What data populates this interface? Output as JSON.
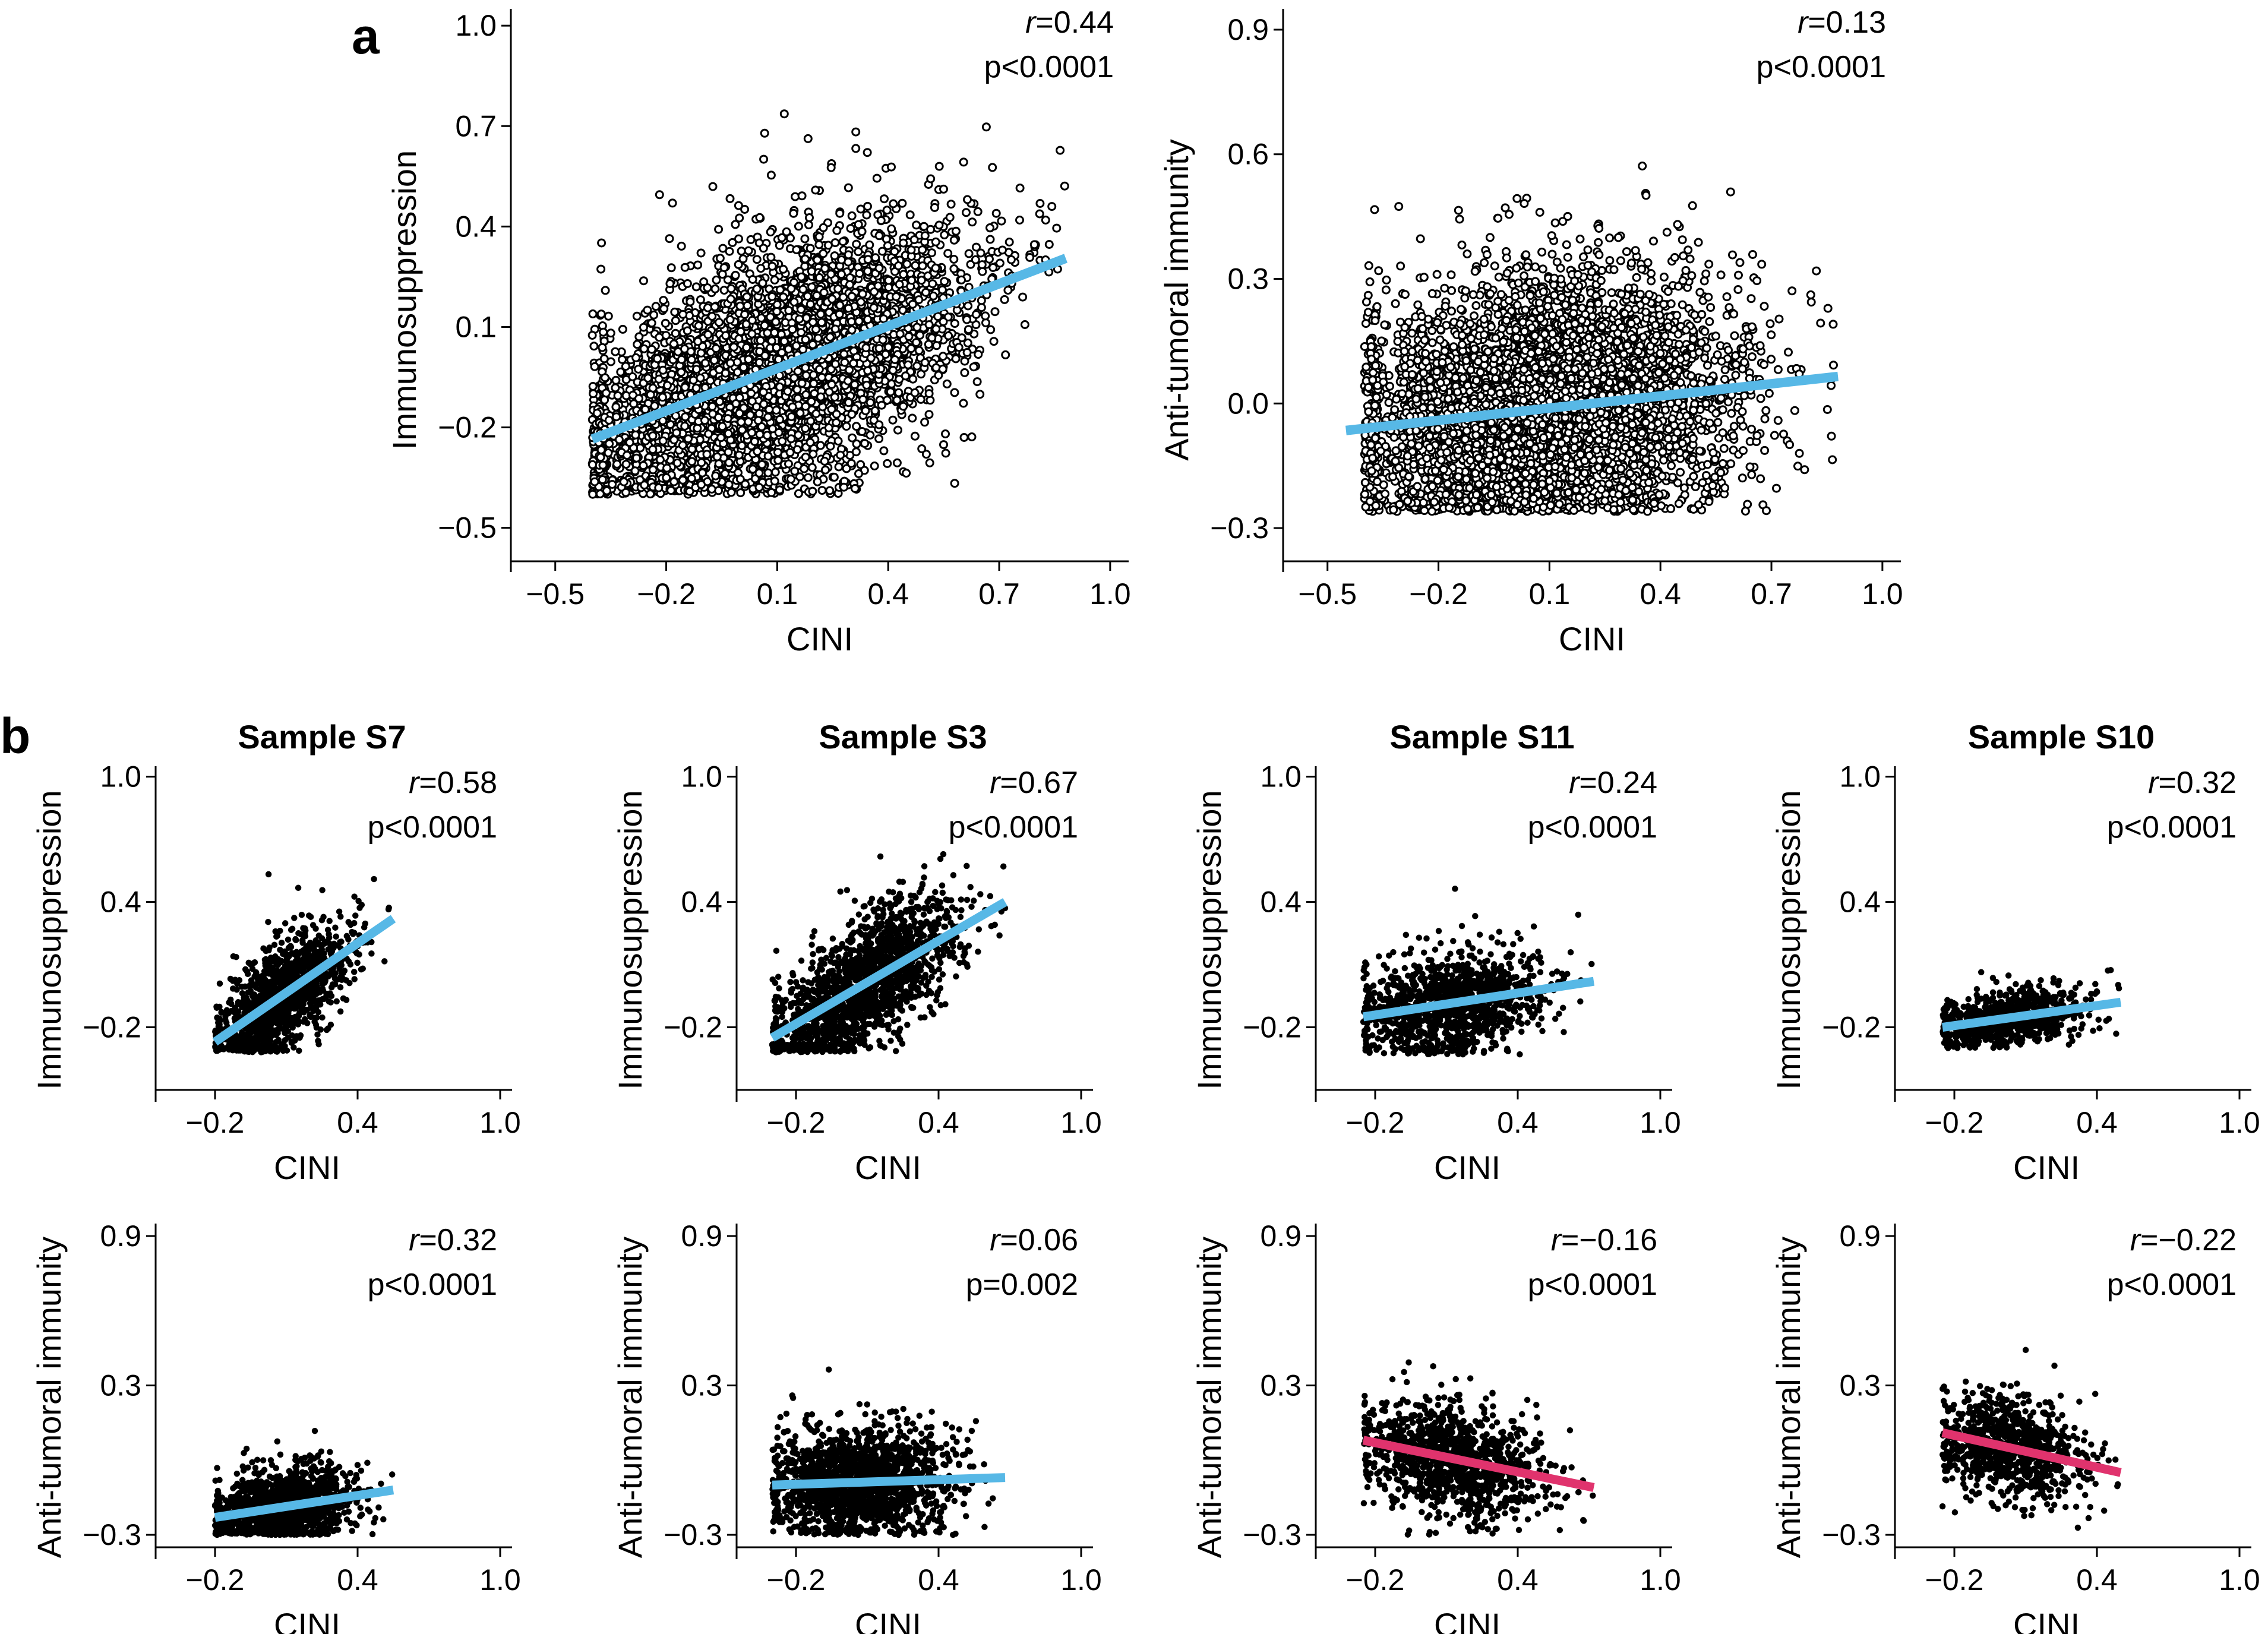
{
  "panels": {
    "a": "a",
    "b": "b"
  },
  "colors": {
    "positive_fit": "#57b8e6",
    "negative_fit": "#e0336d",
    "points": "#000000"
  },
  "chart_data": [
    {
      "id": "a1",
      "type": "scatter",
      "title": "",
      "xlabel": "CINI",
      "ylabel": "Immunosuppression",
      "xlim": [
        -0.62,
        1.05
      ],
      "ylim": [
        -0.6,
        1.05
      ],
      "xticks": [
        -0.5,
        -0.2,
        0.1,
        0.4,
        0.7,
        1.0
      ],
      "xtick_labels": [
        "−0.5",
        "−0.2",
        "0.1",
        "0.4",
        "0.7",
        "1.0"
      ],
      "yticks": [
        -0.5,
        -0.2,
        0.1,
        0.4,
        0.7,
        1.0
      ],
      "ytick_labels": [
        "−0.5",
        "−0.2",
        "0.1",
        "0.4",
        "0.7",
        "1.0"
      ],
      "r_text": "=0.44",
      "p_text": "p<0.0001",
      "fit_line": {
        "x": [
          -0.4,
          0.88
        ],
        "y": [
          -0.235,
          0.305
        ],
        "color": "#57b8e6"
      },
      "cloud": {
        "n": 5000,
        "x_range": [
          -0.4,
          0.88
        ],
        "y_range": [
          -0.4,
          0.8
        ]
      }
    },
    {
      "id": "a2",
      "type": "scatter",
      "title": "",
      "xlabel": "CINI",
      "ylabel": "Anti-tumoral immunity",
      "xlim": [
        -0.62,
        1.05
      ],
      "ylim": [
        -0.38,
        0.95
      ],
      "xticks": [
        -0.5,
        -0.2,
        0.1,
        0.4,
        0.7,
        1.0
      ],
      "xtick_labels": [
        "−0.5",
        "−0.2",
        "0.1",
        "0.4",
        "0.7",
        "1.0"
      ],
      "yticks": [
        -0.3,
        0.0,
        0.3,
        0.6,
        0.9
      ],
      "ytick_labels": [
        "−0.3",
        "0.0",
        "0.3",
        "0.6",
        "0.9"
      ],
      "r_text": "=0.13",
      "p_text": "p<0.0001",
      "fit_line": {
        "x": [
          -0.45,
          0.88
        ],
        "y": [
          -0.065,
          0.065
        ],
        "color": "#57b8e6"
      },
      "cloud": {
        "n": 5000,
        "x_range": [
          -0.4,
          0.88
        ],
        "y_range": [
          -0.26,
          0.84
        ]
      }
    },
    {
      "id": "b-s7-immuno",
      "type": "scatter",
      "title": "Sample S7",
      "xlabel": "CINI",
      "ylabel": "Immunosuppression",
      "xlim": [
        -0.45,
        1.05
      ],
      "ylim": [
        -0.5,
        1.05
      ],
      "xticks": [
        -0.2,
        0.4,
        1.0
      ],
      "xtick_labels": [
        "−0.2",
        "0.4",
        "1.0"
      ],
      "yticks": [
        -0.2,
        0.4,
        1.0
      ],
      "ytick_labels": [
        "−0.2",
        "0.4",
        "1.0"
      ],
      "r_text": "=0.58",
      "p_text": "p<0.0001",
      "fit_line": {
        "x": [
          -0.2,
          0.55
        ],
        "y": [
          -0.27,
          0.32
        ],
        "color": "#57b8e6"
      },
      "cloud": {
        "n": 1300,
        "x_range": [
          -0.2,
          0.55
        ],
        "y_range": [
          -0.32,
          0.56
        ]
      }
    },
    {
      "id": "b-s3-immuno",
      "type": "scatter",
      "title": "Sample S3",
      "xlabel": "CINI",
      "ylabel": "Immunosuppression",
      "xlim": [
        -0.45,
        1.05
      ],
      "ylim": [
        -0.5,
        1.05
      ],
      "xticks": [
        -0.2,
        0.4,
        1.0
      ],
      "xtick_labels": [
        "−0.2",
        "0.4",
        "1.0"
      ],
      "yticks": [
        -0.2,
        0.4,
        1.0
      ],
      "ytick_labels": [
        "−0.2",
        "0.4",
        "1.0"
      ],
      "r_text": "=0.67",
      "p_text": "p<0.0001",
      "fit_line": {
        "x": [
          -0.3,
          0.68
        ],
        "y": [
          -0.25,
          0.4
        ],
        "color": "#57b8e6"
      },
      "cloud": {
        "n": 1700,
        "x_range": [
          -0.3,
          0.68
        ],
        "y_range": [
          -0.32,
          0.76
        ]
      }
    },
    {
      "id": "b-s11-immuno",
      "type": "scatter",
      "title": "Sample S11",
      "xlabel": "CINI",
      "ylabel": "Immunosuppression",
      "xlim": [
        -0.45,
        1.05
      ],
      "ylim": [
        -0.5,
        1.05
      ],
      "xticks": [
        -0.2,
        0.4,
        1.0
      ],
      "xtick_labels": [
        "−0.2",
        "0.4",
        "1.0"
      ],
      "yticks": [
        -0.2,
        0.4,
        1.0
      ],
      "ytick_labels": [
        "−0.2",
        "0.4",
        "1.0"
      ],
      "r_text": "=0.24",
      "p_text": "p<0.0001",
      "fit_line": {
        "x": [
          -0.25,
          0.72
        ],
        "y": [
          -0.15,
          0.02
        ],
        "color": "#57b8e6"
      },
      "cloud": {
        "n": 1200,
        "x_range": [
          -0.25,
          0.72
        ],
        "y_range": [
          -0.33,
          0.52
        ]
      }
    },
    {
      "id": "b-s10-immuno",
      "type": "scatter",
      "title": "Sample S10",
      "xlabel": "CINI",
      "ylabel": "Immunosuppression",
      "xlim": [
        -0.45,
        1.05
      ],
      "ylim": [
        -0.5,
        1.05
      ],
      "xticks": [
        -0.2,
        0.4,
        1.0
      ],
      "xtick_labels": [
        "−0.2",
        "0.4",
        "1.0"
      ],
      "yticks": [
        -0.2,
        0.4,
        1.0
      ],
      "ytick_labels": [
        "−0.2",
        "0.4",
        "1.0"
      ],
      "r_text": "=0.32",
      "p_text": "p<0.0001",
      "fit_line": {
        "x": [
          -0.25,
          0.5
        ],
        "y": [
          -0.2,
          -0.08
        ],
        "color": "#57b8e6"
      },
      "cloud": {
        "n": 900,
        "x_range": [
          -0.25,
          0.5
        ],
        "y_range": [
          -0.3,
          0.15
        ]
      }
    },
    {
      "id": "b-s7-anti",
      "type": "scatter",
      "title": "",
      "xlabel": "CINI",
      "ylabel": "Anti-tumoral immunity",
      "xlim": [
        -0.45,
        1.05
      ],
      "ylim": [
        -0.35,
        0.95
      ],
      "xticks": [
        -0.2,
        0.4,
        1.0
      ],
      "xtick_labels": [
        "−0.2",
        "0.4",
        "1.0"
      ],
      "yticks": [
        -0.3,
        0.3,
        0.9
      ],
      "ytick_labels": [
        "−0.3",
        "0.3",
        "0.9"
      ],
      "r_text": "=0.32",
      "p_text": "p<0.0001",
      "fit_line": {
        "x": [
          -0.2,
          0.55
        ],
        "y": [
          -0.23,
          -0.12
        ],
        "color": "#57b8e6"
      },
      "cloud": {
        "n": 1300,
        "x_range": [
          -0.2,
          0.55
        ],
        "y_range": [
          -0.3,
          0.26
        ]
      }
    },
    {
      "id": "b-s3-anti",
      "type": "scatter",
      "title": "",
      "xlabel": "CINI",
      "ylabel": "Anti-tumoral immunity",
      "xlim": [
        -0.45,
        1.05
      ],
      "ylim": [
        -0.35,
        0.95
      ],
      "xticks": [
        -0.2,
        0.4,
        1.0
      ],
      "xtick_labels": [
        "−0.2",
        "0.4",
        "1.0"
      ],
      "yticks": [
        -0.3,
        0.3,
        0.9
      ],
      "ytick_labels": [
        "−0.3",
        "0.3",
        "0.9"
      ],
      "r_text": "=0.06",
      "p_text": "p=0.002",
      "fit_line": {
        "x": [
          -0.3,
          0.68
        ],
        "y": [
          -0.1,
          -0.07
        ],
        "color": "#57b8e6"
      },
      "cloud": {
        "n": 1700,
        "x_range": [
          -0.3,
          0.68
        ],
        "y_range": [
          -0.3,
          0.5
        ]
      }
    },
    {
      "id": "b-s11-anti",
      "type": "scatter",
      "title": "",
      "xlabel": "CINI",
      "ylabel": "Anti-tumoral immunity",
      "xlim": [
        -0.45,
        1.05
      ],
      "ylim": [
        -0.35,
        0.95
      ],
      "xticks": [
        -0.2,
        0.4,
        1.0
      ],
      "xtick_labels": [
        "−0.2",
        "0.4",
        "1.0"
      ],
      "yticks": [
        -0.3,
        0.3,
        0.9
      ],
      "ytick_labels": [
        "−0.3",
        "0.3",
        "0.9"
      ],
      "r_text": "=−0.16",
      "p_text": "p<0.0001",
      "fit_line": {
        "x": [
          -0.25,
          0.72
        ],
        "y": [
          0.08,
          -0.11
        ],
        "color": "#e0336d"
      },
      "cloud": {
        "n": 1200,
        "x_range": [
          -0.25,
          0.72
        ],
        "y_range": [
          -0.3,
          0.5
        ]
      }
    },
    {
      "id": "b-s10-anti",
      "type": "scatter",
      "title": "",
      "xlabel": "CINI",
      "ylabel": "Anti-tumoral immunity",
      "xlim": [
        -0.45,
        1.05
      ],
      "ylim": [
        -0.35,
        0.95
      ],
      "xticks": [
        -0.2,
        0.4,
        1.0
      ],
      "xtick_labels": [
        "−0.2",
        "0.4",
        "1.0"
      ],
      "yticks": [
        -0.3,
        0.3,
        0.9
      ],
      "ytick_labels": [
        "−0.3",
        "0.3",
        "0.9"
      ],
      "r_text": "=−0.22",
      "p_text": "p<0.0001",
      "fit_line": {
        "x": [
          -0.25,
          0.5
        ],
        "y": [
          0.11,
          -0.05
        ],
        "color": "#e0336d"
      },
      "cloud": {
        "n": 900,
        "x_range": [
          -0.25,
          0.5
        ],
        "y_range": [
          -0.28,
          0.45
        ]
      }
    }
  ]
}
